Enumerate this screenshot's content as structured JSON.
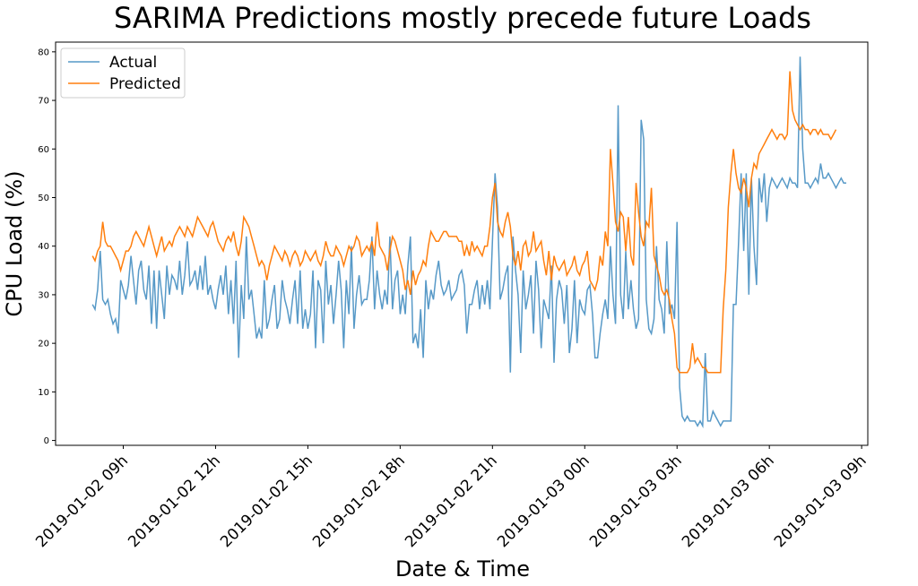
{
  "chart_data": {
    "type": "line",
    "title": "SARIMA Predictions mostly precede future Loads",
    "xlabel": "Date & Time",
    "ylabel": "CPU Load (%)",
    "ylim": [
      -1,
      82
    ],
    "xlim": [
      "2019-01-02 06:48",
      "2019-01-03 09:12"
    ],
    "x_start": "2019-01-02 08:00",
    "x_step_minutes": 5,
    "yticks": [
      0,
      10,
      20,
      30,
      40,
      50,
      60,
      70,
      80
    ],
    "xticks": [
      {
        "t": "2019-01-02 09:00",
        "label": "2019-01-02 09h"
      },
      {
        "t": "2019-01-02 12:00",
        "label": "2019-01-02 12h"
      },
      {
        "t": "2019-01-02 15:00",
        "label": "2019-01-02 15h"
      },
      {
        "t": "2019-01-02 18:00",
        "label": "2019-01-02 18h"
      },
      {
        "t": "2019-01-02 21:00",
        "label": "2019-01-02 21h"
      },
      {
        "t": "2019-01-03 00:00",
        "label": "2019-01-03 00h"
      },
      {
        "t": "2019-01-03 03:00",
        "label": "2019-01-03 03h"
      },
      {
        "t": "2019-01-03 06:00",
        "label": "2019-01-03 06h"
      },
      {
        "t": "2019-01-03 09:00",
        "label": "2019-01-03 09h"
      }
    ],
    "grid": false,
    "legend": "top-left",
    "series": [
      {
        "name": "Actual",
        "color": "#1f77b4",
        "values": [
          28,
          27,
          31,
          39,
          29,
          28,
          29,
          26,
          24,
          25,
          22,
          33,
          31,
          29,
          32,
          38,
          33,
          28,
          35,
          37,
          31,
          29,
          36,
          24,
          35,
          23,
          35,
          30,
          25,
          36,
          30,
          34,
          33,
          31,
          37,
          30,
          34,
          41,
          32,
          33,
          35,
          31,
          36,
          31,
          38,
          30,
          32,
          29,
          27,
          31,
          34,
          30,
          36,
          26,
          33,
          24,
          37,
          17,
          32,
          25,
          42,
          29,
          31,
          26,
          21,
          23,
          21,
          33,
          23,
          25,
          29,
          32,
          23,
          25,
          33,
          29,
          27,
          24,
          29,
          33,
          24,
          35,
          23,
          27,
          23,
          26,
          35,
          19,
          33,
          31,
          20,
          37,
          28,
          32,
          24,
          30,
          37,
          31,
          19,
          33,
          26,
          40,
          23,
          30,
          34,
          28,
          29,
          29,
          33,
          42,
          27,
          35,
          30,
          27,
          31,
          28,
          42,
          27,
          33,
          35,
          26,
          30,
          26,
          36,
          42,
          20,
          22,
          19,
          27,
          17,
          33,
          27,
          31,
          29,
          34,
          37,
          32,
          30,
          31,
          33,
          29,
          30,
          31,
          34,
          35,
          32,
          22,
          28,
          28,
          31,
          33,
          27,
          32,
          28,
          33,
          27,
          41,
          55,
          48,
          29,
          31,
          34,
          36,
          14,
          42,
          35,
          30,
          18,
          35,
          27,
          30,
          34,
          22,
          37,
          31,
          19,
          29,
          27,
          25,
          36,
          16,
          29,
          33,
          31,
          24,
          32,
          18,
          23,
          33,
          20,
          29,
          27,
          26,
          31,
          32,
          26,
          17,
          17,
          22,
          26,
          29,
          25,
          40,
          30,
          24,
          69,
          30,
          25,
          39,
          27,
          33,
          27,
          23,
          25,
          66,
          62,
          29,
          23,
          22,
          25,
          40,
          29,
          27,
          22,
          41,
          26,
          28,
          25,
          45,
          11,
          5,
          4,
          5,
          4,
          4,
          4,
          3,
          4,
          3,
          18,
          4,
          4,
          6,
          5,
          4,
          3,
          4,
          4,
          4,
          4,
          28,
          28,
          41,
          55,
          39,
          55,
          30,
          54,
          40,
          32,
          54,
          49,
          55,
          45,
          52,
          54,
          53,
          52,
          53,
          54,
          53,
          52,
          54,
          53,
          53,
          52,
          79,
          60,
          53,
          53,
          52,
          53,
          54,
          53,
          57,
          54,
          54,
          55,
          54,
          53,
          52,
          53,
          54,
          53,
          53
        ]
      },
      {
        "name": "Predicted",
        "color": "#ff7f0e",
        "values": [
          38,
          37,
          39,
          40,
          45,
          41,
          40,
          40,
          39,
          38,
          37,
          35,
          37,
          39,
          39,
          40,
          42,
          43,
          42,
          41,
          40,
          42,
          44,
          42,
          40,
          38,
          40,
          42,
          39,
          40,
          41,
          40,
          42,
          43,
          44,
          43,
          42,
          44,
          43,
          42,
          44,
          46,
          45,
          44,
          43,
          42,
          44,
          45,
          43,
          41,
          40,
          39,
          41,
          42,
          41,
          43,
          40,
          38,
          41,
          46,
          45,
          44,
          42,
          40,
          38,
          36,
          37,
          36,
          33,
          36,
          38,
          40,
          39,
          38,
          37,
          39,
          38,
          36,
          38,
          39,
          38,
          36,
          37,
          39,
          38,
          37,
          38,
          39,
          37,
          36,
          38,
          41,
          39,
          38,
          38,
          40,
          39,
          38,
          36,
          38,
          40,
          39,
          40,
          42,
          41,
          38,
          39,
          40,
          39,
          41,
          38,
          45,
          40,
          39,
          38,
          35,
          39,
          42,
          41,
          39,
          37,
          35,
          31,
          33,
          30,
          35,
          32,
          34,
          35,
          37,
          36,
          40,
          43,
          42,
          41,
          41,
          42,
          43,
          43,
          42,
          42,
          42,
          42,
          41,
          41,
          38,
          40,
          38,
          41,
          39,
          40,
          39,
          38,
          40,
          40,
          44,
          50,
          53,
          45,
          43,
          42,
          45,
          47,
          44,
          38,
          36,
          39,
          35,
          40,
          41,
          38,
          39,
          43,
          39,
          40,
          41,
          37,
          34,
          39,
          33,
          38,
          36,
          35,
          36,
          37,
          34,
          35,
          36,
          38,
          35,
          34,
          36,
          37,
          39,
          33,
          32,
          31,
          33,
          38,
          36,
          43,
          40,
          60,
          53,
          45,
          43,
          47,
          46,
          39,
          46,
          38,
          36,
          53,
          47,
          42,
          40,
          45,
          44,
          52,
          38,
          36,
          34,
          31,
          30,
          31,
          29,
          25,
          22,
          15,
          14,
          14,
          14,
          14,
          15,
          20,
          16,
          17,
          16,
          15,
          15,
          14,
          14,
          14,
          14,
          14,
          14,
          27,
          35,
          48,
          55,
          60,
          55,
          52,
          51,
          54,
          52,
          48,
          54,
          57,
          56,
          59,
          60,
          61,
          62,
          63,
          64,
          63,
          62,
          63,
          63,
          62,
          63,
          76,
          68,
          66,
          65,
          64,
          65,
          64,
          64,
          63,
          64,
          64,
          63,
          64,
          63,
          63,
          63,
          62,
          63,
          64
        ]
      }
    ]
  }
}
